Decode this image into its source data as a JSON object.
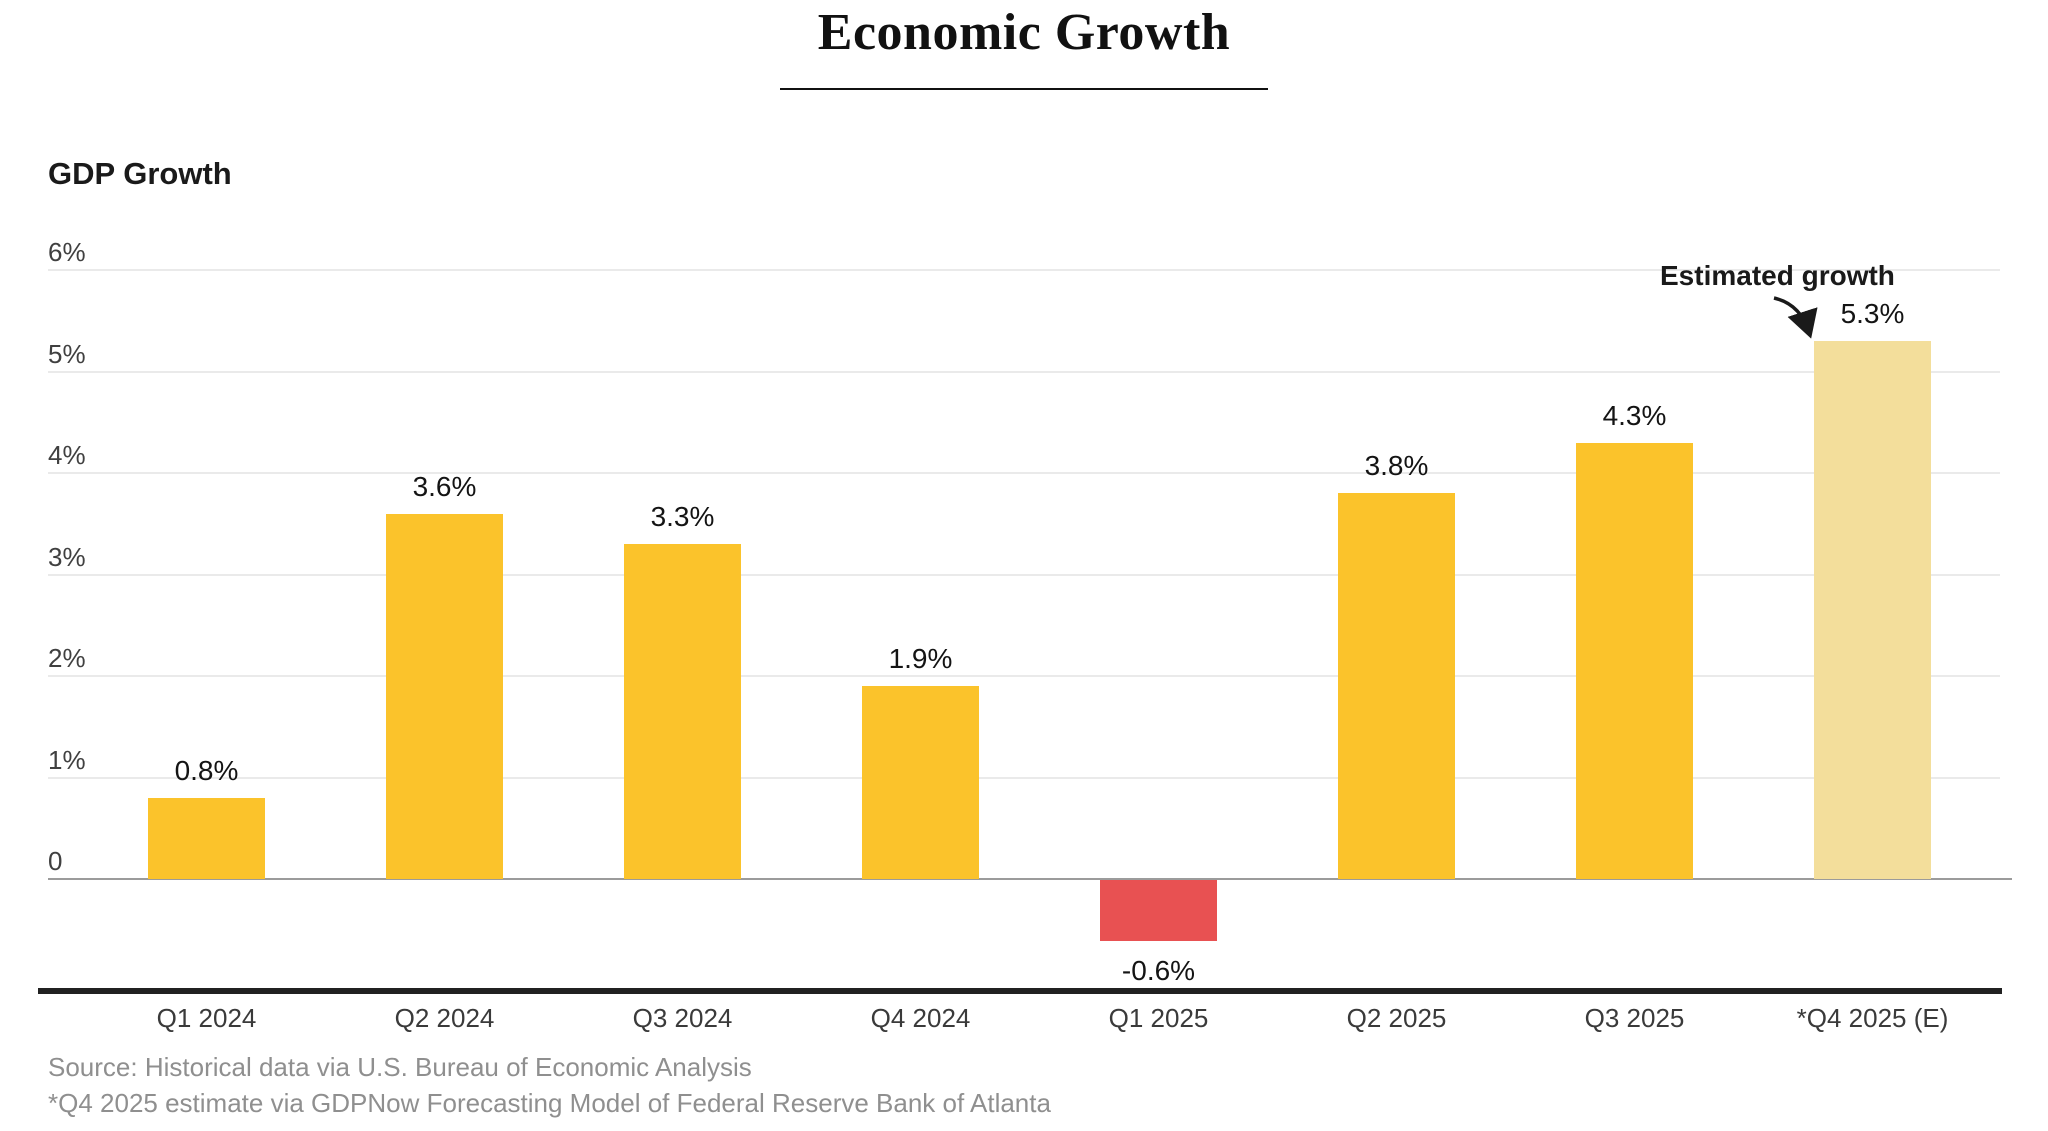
{
  "title": "Economic Growth",
  "subtitle": "GDP Growth",
  "annotation": {
    "label": "Estimated growth"
  },
  "source": {
    "line1": "Source: Historical data via U.S. Bureau of Economic Analysis",
    "line2": "*Q4 2025 estimate via GDPNow Forecasting Model of Federal Reserve Bank of Atlanta"
  },
  "chart_data": {
    "type": "bar",
    "title": "Economic Growth",
    "subtitle": "GDP Growth",
    "categories": [
      "Q1 2024",
      "Q2 2024",
      "Q3 2024",
      "Q4 2024",
      "Q1 2025",
      "Q2 2025",
      "Q3 2025",
      "*Q4 2025 (E)"
    ],
    "values": [
      0.8,
      3.6,
      3.3,
      1.9,
      -0.6,
      3.8,
      4.3,
      5.3
    ],
    "value_labels": [
      "0.8%",
      "3.6%",
      "3.3%",
      "1.9%",
      "-0.6%",
      "3.8%",
      "4.3%",
      "5.3%"
    ],
    "estimated_index": 7,
    "annotation": "Estimated growth",
    "xlabel": "",
    "ylabel": "GDP Growth",
    "ylim": [
      -1,
      6
    ],
    "yticks": [
      {
        "value": 6,
        "label": "6%"
      },
      {
        "value": 5,
        "label": "5%"
      },
      {
        "value": 4,
        "label": "4%"
      },
      {
        "value": 3,
        "label": "3%"
      },
      {
        "value": 2,
        "label": "2%"
      },
      {
        "value": 1,
        "label": "1%"
      },
      {
        "value": 0,
        "label": "0"
      }
    ],
    "grid": true,
    "legend_position": "none",
    "colors": {
      "positive": "#FBC32B",
      "negative": "#E85152",
      "estimated": "#F3DE9B",
      "gridline": "#eaeaea",
      "baseline": "#9b9b9b",
      "axis": "#212121"
    }
  }
}
